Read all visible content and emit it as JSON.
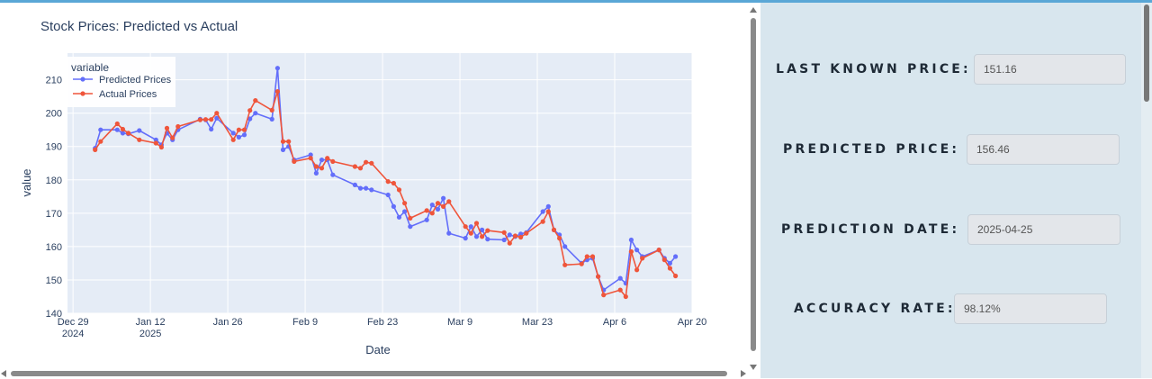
{
  "chart_data": {
    "type": "line",
    "title": "Stock Prices: Predicted vs Actual",
    "xlabel": "Date",
    "ylabel": "value",
    "legend": {
      "title": "variable",
      "placement": "top-left"
    },
    "grid": true,
    "x_ticks": [
      {
        "date": "2024-12-29",
        "label": "Dec 29",
        "sublabel": "2024"
      },
      {
        "date": "2025-01-12",
        "label": "Jan 12",
        "sublabel": "2025"
      },
      {
        "date": "2025-01-26",
        "label": "Jan 26",
        "sublabel": ""
      },
      {
        "date": "2025-02-09",
        "label": "Feb 9",
        "sublabel": ""
      },
      {
        "date": "2025-02-23",
        "label": "Feb 23",
        "sublabel": ""
      },
      {
        "date": "2025-03-09",
        "label": "Mar 9",
        "sublabel": ""
      },
      {
        "date": "2025-03-23",
        "label": "Mar 23",
        "sublabel": ""
      },
      {
        "date": "2025-04-06",
        "label": "Apr 6",
        "sublabel": ""
      },
      {
        "date": "2025-04-20",
        "label": "Apr 20",
        "sublabel": ""
      }
    ],
    "y_ticks": [
      140,
      150,
      160,
      170,
      180,
      190,
      200,
      210
    ],
    "xlim": [
      "2024-12-28",
      "2025-04-20"
    ],
    "ylim": [
      140,
      218
    ],
    "x": [
      "2025-01-02",
      "2025-01-03",
      "2025-01-06",
      "2025-01-07",
      "2025-01-08",
      "2025-01-10",
      "2025-01-13",
      "2025-01-14",
      "2025-01-15",
      "2025-01-16",
      "2025-01-17",
      "2025-01-21",
      "2025-01-22",
      "2025-01-23",
      "2025-01-24",
      "2025-01-27",
      "2025-01-28",
      "2025-01-29",
      "2025-01-30",
      "2025-01-31",
      "2025-02-03",
      "2025-02-04",
      "2025-02-05",
      "2025-02-06",
      "2025-02-07",
      "2025-02-10",
      "2025-02-11",
      "2025-02-12",
      "2025-02-13",
      "2025-02-14",
      "2025-02-18",
      "2025-02-19",
      "2025-02-20",
      "2025-02-21",
      "2025-02-24",
      "2025-02-25",
      "2025-02-26",
      "2025-02-27",
      "2025-02-28",
      "2025-03-03",
      "2025-03-04",
      "2025-03-05",
      "2025-03-06",
      "2025-03-07",
      "2025-03-10",
      "2025-03-11",
      "2025-03-12",
      "2025-03-13",
      "2025-03-14",
      "2025-03-17",
      "2025-03-18",
      "2025-03-19",
      "2025-03-20",
      "2025-03-21",
      "2025-03-24",
      "2025-03-25",
      "2025-03-26",
      "2025-03-27",
      "2025-03-28",
      "2025-03-31",
      "2025-04-01",
      "2025-04-02",
      "2025-04-03",
      "2025-04-04",
      "2025-04-07",
      "2025-04-08",
      "2025-04-09",
      "2025-04-10",
      "2025-04-11",
      "2025-04-14",
      "2025-04-15",
      "2025-04-16",
      "2025-04-17"
    ],
    "series": [
      {
        "name": "Predicted Prices",
        "color": "#636efa",
        "values": [
          189.5,
          195,
          195,
          194,
          193.8,
          194.8,
          192,
          190.5,
          194,
          192,
          195,
          198.2,
          198,
          195.2,
          198.5,
          194,
          192.8,
          193.5,
          198.3,
          200,
          198.2,
          213.5,
          189,
          190,
          186,
          187.5,
          182,
          186,
          186,
          181.5,
          178.5,
          177.5,
          177.5,
          177,
          175.5,
          172,
          168.8,
          170.5,
          166,
          168,
          172.5,
          171.2,
          174.5,
          164,
          162.5,
          166,
          163,
          165,
          162.2,
          162,
          163.5,
          163,
          163.8,
          164.2,
          170.5,
          172,
          165,
          163.5,
          160,
          155,
          156,
          156.5,
          151,
          147,
          150.5,
          149,
          162,
          159,
          157,
          159,
          156.5,
          155,
          157
        ]
      },
      {
        "name": "Actual Prices",
        "color": "#ef553b",
        "values": [
          189,
          191.5,
          196.8,
          195.2,
          194,
          192,
          191,
          189.8,
          195.5,
          192.6,
          196,
          198,
          198.1,
          198.1,
          200,
          192,
          195,
          195,
          200.8,
          203.8,
          200.9,
          206.5,
          191.5,
          191.5,
          185.5,
          186.5,
          184,
          183.5,
          186.5,
          185.5,
          184,
          183.5,
          185.3,
          185,
          179.5,
          179,
          177,
          173,
          168.5,
          170.8,
          170,
          173,
          172,
          173.5,
          166,
          164,
          167,
          163,
          164.8,
          164.2,
          161,
          163.2,
          162.8,
          164,
          167.5,
          170.5,
          165,
          162.5,
          154.5,
          154.8,
          157,
          157,
          151,
          145.5,
          147,
          145,
          158.5,
          153,
          156.5,
          159,
          156,
          153.5,
          151.2
        ]
      }
    ]
  },
  "sidebar": {
    "metrics": [
      {
        "label": "LAST KNOWN PRICE:",
        "value": "151.16"
      },
      {
        "label": "PREDICTED PRICE:",
        "value": "156.46"
      },
      {
        "label": "PREDICTION DATE:",
        "value": "2025-04-25"
      },
      {
        "label": "ACCURACY RATE:",
        "value": "98.12%"
      }
    ]
  }
}
